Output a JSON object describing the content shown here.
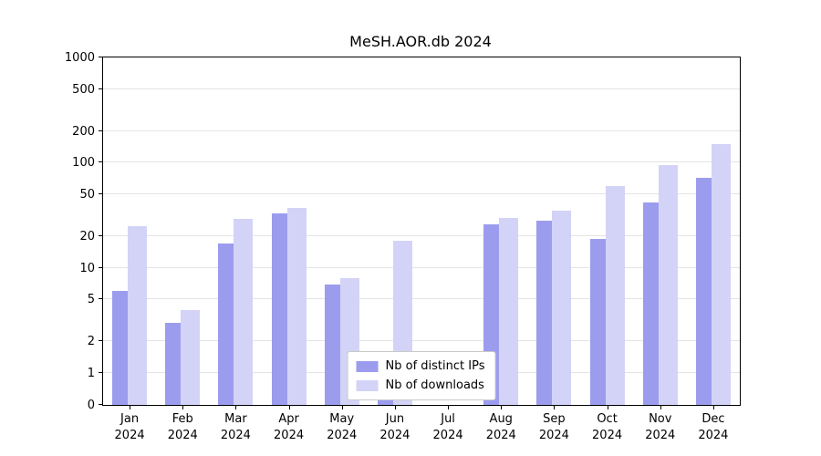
{
  "chart_data": {
    "type": "bar",
    "title": "MeSH.AOR.db 2024",
    "yscale": "symlog",
    "ylim": [
      0,
      1000
    ],
    "yticks": [
      0,
      1,
      2,
      5,
      10,
      20,
      50,
      100,
      200,
      500,
      1000
    ],
    "grid": true,
    "x_tick_year": "2024",
    "categories": [
      "Jan",
      "Feb",
      "Mar",
      "Apr",
      "May",
      "Jun",
      "Jul",
      "Aug",
      "Sep",
      "Oct",
      "Nov",
      "Dec"
    ],
    "series": [
      {
        "name": "Nb of distinct IPs",
        "color": "#9c9cee",
        "values": [
          6,
          3,
          17,
          33,
          7,
          1,
          0,
          26,
          28,
          19,
          42,
          72
        ]
      },
      {
        "name": "Nb of downloads",
        "color": "#d3d3f7",
        "values": [
          25,
          4,
          29,
          37,
          8,
          18,
          0,
          30,
          35,
          60,
          95,
          150
        ]
      }
    ],
    "legend": {
      "position": "lower center",
      "entries": [
        "Nb of distinct IPs",
        "Nb of downloads"
      ]
    }
  }
}
